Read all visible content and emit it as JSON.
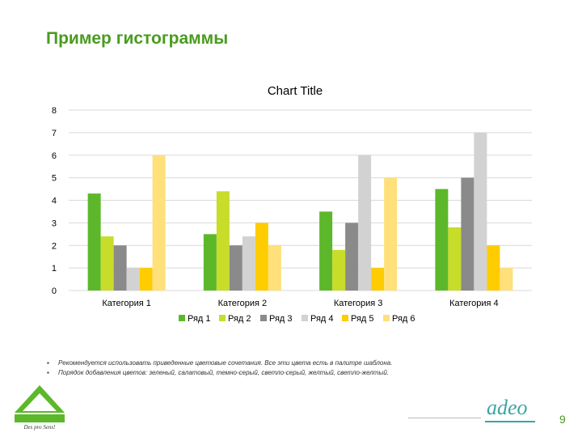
{
  "slide": {
    "title": "Пример гистограммы",
    "page_number": "9"
  },
  "notes": [
    "Рекомендуется использовать приведенные цветовые сочетания. Все эти цвета есть в палитре шаблона.",
    "Порядок добавления цветов: зеленый, салатовый, темно-серый, светло-серый, желтый, светло-желтый."
  ],
  "branding": {
    "logo_left": "LEROY MERLIN",
    "logo_right": "adeo"
  },
  "chart_data": {
    "type": "bar",
    "title": "Chart Title",
    "xlabel": "",
    "ylabel": "",
    "ylim": [
      0,
      8
    ],
    "yticks": [
      "0",
      "1",
      "2",
      "3",
      "4",
      "5",
      "6",
      "7",
      "8"
    ],
    "grid": true,
    "legend": "bottom",
    "categories": [
      "Категория 1",
      "Категория 2",
      "Категория 3",
      "Категория 4"
    ],
    "series": [
      {
        "name": "Ряд 1",
        "color": "#5cb82a",
        "values": [
          4.3,
          2.5,
          3.5,
          4.5
        ]
      },
      {
        "name": "Ряд 2",
        "color": "#c8dc2a",
        "values": [
          2.4,
          4.4,
          1.8,
          2.8
        ]
      },
      {
        "name": "Ряд 3",
        "color": "#8a8a8a",
        "values": [
          2,
          2,
          3,
          5
        ]
      },
      {
        "name": "Ряд 4",
        "color": "#d2d2d2",
        "values": [
          1,
          2.4,
          6,
          7
        ]
      },
      {
        "name": "Ряд 5",
        "color": "#ffcc00",
        "values": [
          1,
          3,
          1,
          2
        ]
      },
      {
        "name": "Ряд 6",
        "color": "#ffe07a",
        "values": [
          6,
          2,
          5,
          1
        ]
      }
    ]
  }
}
